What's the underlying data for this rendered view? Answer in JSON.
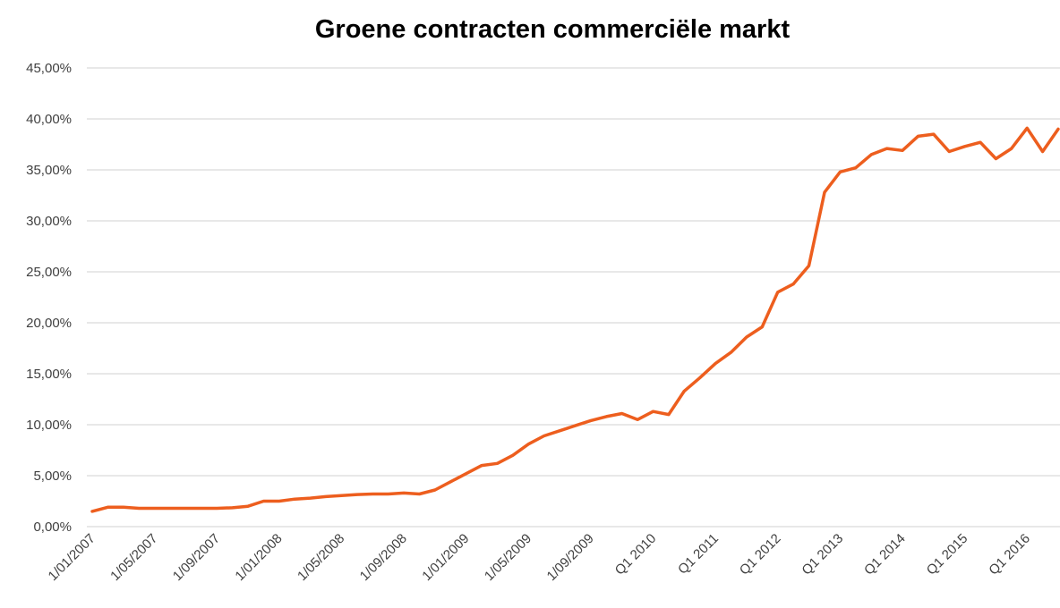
{
  "chart_data": {
    "type": "line",
    "title": "Groene contracten commerciële markt",
    "categories": [
      "1/01/2007",
      null,
      null,
      null,
      "1/05/2007",
      null,
      null,
      null,
      "1/09/2007",
      null,
      null,
      null,
      "1/01/2008",
      null,
      null,
      null,
      "1/05/2008",
      null,
      null,
      null,
      "1/09/2008",
      null,
      null,
      null,
      "1/01/2009",
      null,
      null,
      null,
      "1/05/2009",
      null,
      null,
      null,
      "1/09/2009",
      null,
      null,
      null,
      "Q1 2010",
      null,
      null,
      null,
      "Q1 2011",
      null,
      null,
      null,
      "Q1 2012",
      null,
      null,
      null,
      "Q1 2013",
      null,
      null,
      null,
      "Q1 2014",
      null,
      null,
      null,
      "Q1 2015",
      null,
      null,
      null,
      "Q1 2016",
      null,
      null
    ],
    "series": [
      {
        "name": "Groene contracten",
        "color": "#ed5e1e",
        "values": [
          1.5,
          1.9,
          1.9,
          1.8,
          1.8,
          1.8,
          1.8,
          1.8,
          1.8,
          1.85,
          2.0,
          2.5,
          2.5,
          2.7,
          2.8,
          2.95,
          3.05,
          3.15,
          3.2,
          3.2,
          3.3,
          3.2,
          3.6,
          4.4,
          5.2,
          6.0,
          6.2,
          7.0,
          8.1,
          8.9,
          9.4,
          9.9,
          10.4,
          10.8,
          11.1,
          10.5,
          11.3,
          11.0,
          13.3,
          14.6,
          16.0,
          17.1,
          18.6,
          19.6,
          23.0,
          23.8,
          25.6,
          32.8,
          34.8,
          35.2,
          36.5,
          37.1,
          36.9,
          38.3,
          38.5,
          36.8,
          37.3,
          37.7,
          36.1,
          37.1,
          39.1,
          36.8,
          39.0
        ]
      }
    ],
    "ylim": [
      0,
      45
    ],
    "yticks": [
      {
        "value": 0,
        "label": "0,00%"
      },
      {
        "value": 5,
        "label": "5,00%"
      },
      {
        "value": 10,
        "label": "10,00%"
      },
      {
        "value": 15,
        "label": "15,00%"
      },
      {
        "value": 20,
        "label": "20,00%"
      },
      {
        "value": 25,
        "label": "25,00%"
      },
      {
        "value": 30,
        "label": "30,00%"
      },
      {
        "value": 35,
        "label": "35,00%"
      },
      {
        "value": 40,
        "label": "40,00%"
      },
      {
        "value": 45,
        "label": "45,00%"
      }
    ],
    "grid": true
  }
}
